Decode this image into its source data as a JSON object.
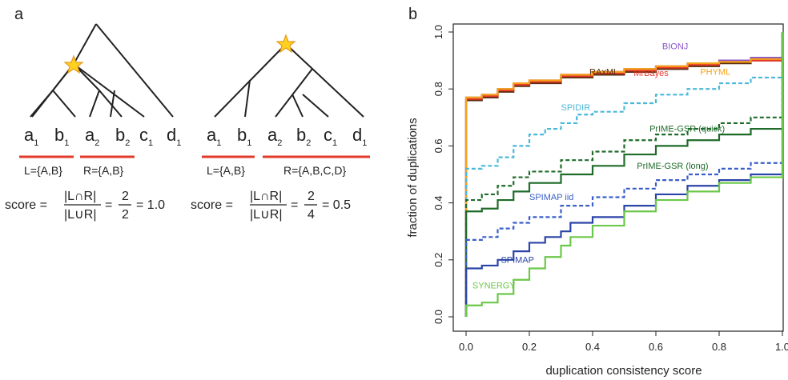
{
  "panel_a": {
    "letter": "a",
    "tree1": {
      "leaves": [
        {
          "name": "a",
          "sub": "1"
        },
        {
          "name": "b",
          "sub": "1"
        },
        {
          "name": "a",
          "sub": "2"
        },
        {
          "name": "b",
          "sub": "2"
        },
        {
          "name": "c",
          "sub": "1"
        },
        {
          "name": "d",
          "sub": "1"
        }
      ],
      "left_set": "L={A,B}",
      "right_set": "R={A,B}",
      "score_label": "score =",
      "numerator": "|L∩R|",
      "denominator": "|L∪R|",
      "frac_num": "2",
      "frac_den": "2",
      "result": "= 1.0"
    },
    "tree2": {
      "leaves": [
        {
          "name": "a",
          "sub": "1"
        },
        {
          "name": "b",
          "sub": "1"
        },
        {
          "name": "a",
          "sub": "2"
        },
        {
          "name": "b",
          "sub": "2"
        },
        {
          "name": "c",
          "sub": "1"
        },
        {
          "name": "d",
          "sub": "1"
        }
      ],
      "left_set": "L={A,B}",
      "right_set": "R={A,B,C,D}",
      "score_label": "score =",
      "numerator": "|L∩R|",
      "denominator": "|L∪R|",
      "frac_num": "2",
      "frac_den": "4",
      "result": "= 0.5"
    },
    "colors": {
      "underline": "#e23a2a",
      "star_fill": "#ffd21f",
      "star_stroke": "#e69a1a"
    }
  },
  "chart_data": {
    "type": "line",
    "panel_letter": "b",
    "xlabel": "duplication consistency score",
    "ylabel": "fraction of duplications",
    "xlim": [
      0.0,
      1.0
    ],
    "ylim": [
      0.0,
      1.0
    ],
    "xticks": [
      "0.0",
      "0.2",
      "0.4",
      "0.6",
      "0.8",
      "1.0"
    ],
    "yticks": [
      "0.0",
      "0.2",
      "0.4",
      "0.6",
      "0.8",
      "1.0"
    ],
    "series": [
      {
        "name": "BIONJ",
        "color": "#8b55c8",
        "dash": false,
        "points": [
          [
            0,
            0.77
          ],
          [
            0.05,
            0.78
          ],
          [
            0.1,
            0.8
          ],
          [
            0.15,
            0.82
          ],
          [
            0.2,
            0.83
          ],
          [
            0.3,
            0.85
          ],
          [
            0.4,
            0.86
          ],
          [
            0.5,
            0.87
          ],
          [
            0.6,
            0.88
          ],
          [
            0.7,
            0.89
          ],
          [
            0.8,
            0.9
          ],
          [
            0.9,
            0.91
          ],
          [
            1.0,
            0.92
          ]
        ]
      },
      {
        "name": "RAxML",
        "color": "#5a2e12",
        "dash": false,
        "points": [
          [
            0,
            0.76
          ],
          [
            0.05,
            0.77
          ],
          [
            0.1,
            0.79
          ],
          [
            0.15,
            0.81
          ],
          [
            0.2,
            0.82
          ],
          [
            0.3,
            0.84
          ],
          [
            0.4,
            0.85
          ],
          [
            0.5,
            0.86
          ],
          [
            0.6,
            0.87
          ],
          [
            0.7,
            0.88
          ],
          [
            0.8,
            0.89
          ],
          [
            0.9,
            0.9
          ],
          [
            1.0,
            0.91
          ]
        ]
      },
      {
        "name": "MrBayes",
        "color": "#e8372a",
        "dash": false,
        "points": [
          [
            0,
            0.765
          ],
          [
            0.05,
            0.775
          ],
          [
            0.1,
            0.795
          ],
          [
            0.15,
            0.815
          ],
          [
            0.2,
            0.825
          ],
          [
            0.3,
            0.845
          ],
          [
            0.4,
            0.855
          ],
          [
            0.5,
            0.865
          ],
          [
            0.6,
            0.875
          ],
          [
            0.7,
            0.885
          ],
          [
            0.8,
            0.895
          ],
          [
            0.9,
            0.9
          ],
          [
            1.0,
            0.91
          ]
        ]
      },
      {
        "name": "PHYML",
        "color": "#f5a21a",
        "dash": false,
        "points": [
          [
            0,
            0.77
          ],
          [
            0.05,
            0.78
          ],
          [
            0.1,
            0.8
          ],
          [
            0.15,
            0.82
          ],
          [
            0.2,
            0.83
          ],
          [
            0.3,
            0.85
          ],
          [
            0.4,
            0.86
          ],
          [
            0.5,
            0.87
          ],
          [
            0.6,
            0.88
          ],
          [
            0.7,
            0.89
          ],
          [
            0.8,
            0.895
          ],
          [
            0.9,
            0.905
          ],
          [
            1.0,
            0.915
          ]
        ]
      },
      {
        "name": "SPIDIR",
        "color": "#4ab8d8",
        "dash": true,
        "points": [
          [
            0,
            0.52
          ],
          [
            0.05,
            0.53
          ],
          [
            0.1,
            0.56
          ],
          [
            0.15,
            0.6
          ],
          [
            0.2,
            0.64
          ],
          [
            0.25,
            0.66
          ],
          [
            0.3,
            0.68
          ],
          [
            0.35,
            0.71
          ],
          [
            0.4,
            0.72
          ],
          [
            0.5,
            0.75
          ],
          [
            0.6,
            0.78
          ],
          [
            0.7,
            0.8
          ],
          [
            0.8,
            0.82
          ],
          [
            0.9,
            0.84
          ],
          [
            1.0,
            0.85
          ]
        ]
      },
      {
        "name": "PrIME-GSR (quick)",
        "color": "#1f6b2a",
        "dash": true,
        "points": [
          [
            0,
            0.41
          ],
          [
            0.05,
            0.43
          ],
          [
            0.1,
            0.46
          ],
          [
            0.15,
            0.49
          ],
          [
            0.2,
            0.51
          ],
          [
            0.3,
            0.55
          ],
          [
            0.4,
            0.58
          ],
          [
            0.5,
            0.62
          ],
          [
            0.6,
            0.64
          ],
          [
            0.7,
            0.66
          ],
          [
            0.8,
            0.68
          ],
          [
            0.9,
            0.7
          ],
          [
            1.0,
            0.71
          ]
        ]
      },
      {
        "name": "PrIME-GSR (long)",
        "color": "#1f6b2a",
        "dash": false,
        "points": [
          [
            0,
            0.37
          ],
          [
            0.05,
            0.38
          ],
          [
            0.1,
            0.41
          ],
          [
            0.15,
            0.44
          ],
          [
            0.2,
            0.47
          ],
          [
            0.3,
            0.5
          ],
          [
            0.4,
            0.53
          ],
          [
            0.5,
            0.57
          ],
          [
            0.6,
            0.6
          ],
          [
            0.7,
            0.62
          ],
          [
            0.8,
            0.64
          ],
          [
            0.9,
            0.66
          ],
          [
            1.0,
            0.68
          ]
        ]
      },
      {
        "name": "SPIMAP iid",
        "color": "#3a5fc8",
        "dash": true,
        "points": [
          [
            0,
            0.27
          ],
          [
            0.05,
            0.28
          ],
          [
            0.1,
            0.31
          ],
          [
            0.15,
            0.33
          ],
          [
            0.2,
            0.35
          ],
          [
            0.3,
            0.39
          ],
          [
            0.4,
            0.42
          ],
          [
            0.5,
            0.45
          ],
          [
            0.6,
            0.48
          ],
          [
            0.7,
            0.5
          ],
          [
            0.8,
            0.52
          ],
          [
            0.9,
            0.54
          ],
          [
            1.0,
            0.56
          ]
        ]
      },
      {
        "name": "SPIMAP",
        "color": "#2a44a8",
        "dash": false,
        "points": [
          [
            0,
            0.17
          ],
          [
            0.05,
            0.18
          ],
          [
            0.1,
            0.2
          ],
          [
            0.15,
            0.23
          ],
          [
            0.2,
            0.26
          ],
          [
            0.25,
            0.28
          ],
          [
            0.3,
            0.3
          ],
          [
            0.33,
            0.33
          ],
          [
            0.4,
            0.35
          ],
          [
            0.5,
            0.39
          ],
          [
            0.6,
            0.43
          ],
          [
            0.7,
            0.46
          ],
          [
            0.8,
            0.48
          ],
          [
            0.9,
            0.5
          ],
          [
            1.0,
            0.52
          ]
        ]
      },
      {
        "name": "SYNERGY",
        "color": "#6cc84a",
        "dash": false,
        "points": [
          [
            0,
            0.04
          ],
          [
            0.05,
            0.05
          ],
          [
            0.1,
            0.08
          ],
          [
            0.15,
            0.13
          ],
          [
            0.2,
            0.17
          ],
          [
            0.25,
            0.21
          ],
          [
            0.3,
            0.25
          ],
          [
            0.33,
            0.28
          ],
          [
            0.4,
            0.32
          ],
          [
            0.5,
            0.37
          ],
          [
            0.6,
            0.41
          ],
          [
            0.7,
            0.44
          ],
          [
            0.8,
            0.47
          ],
          [
            0.9,
            0.49
          ],
          [
            1.0,
            0.51
          ]
        ]
      }
    ]
  }
}
